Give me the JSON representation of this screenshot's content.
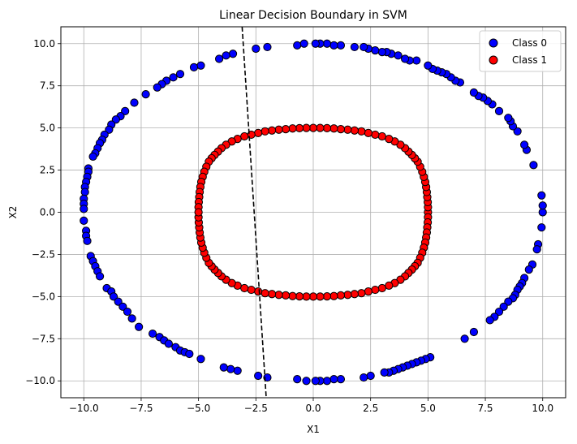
{
  "chart_data": {
    "type": "scatter",
    "title": "Linear Decision Boundary in SVM",
    "xlabel": "X1",
    "ylabel": "X2",
    "xlim": [
      -11.0,
      11.0
    ],
    "ylim": [
      -11.0,
      11.0
    ],
    "xticks": [
      -10.0,
      -7.5,
      -5.0,
      -2.5,
      0.0,
      2.5,
      5.0,
      7.5,
      10.0
    ],
    "yticks": [
      -10.0,
      -7.5,
      -5.0,
      -2.5,
      0.0,
      2.5,
      5.0,
      7.5,
      10.0
    ],
    "xtick_labels": [
      "−10.0",
      "−7.5",
      "−5.0",
      "−2.5",
      "0.0",
      "2.5",
      "5.0",
      "7.5",
      "10.0"
    ],
    "ytick_labels": [
      "−10.0",
      "−7.5",
      "−5.0",
      "−2.5",
      "0.0",
      "2.5",
      "5.0",
      "7.5",
      "10.0"
    ],
    "grid": true,
    "legend_position": "top-right",
    "series": [
      {
        "name": "Class 0",
        "color": "#0000ff",
        "points": [
          [
            10.0,
            0.0
          ],
          [
            10.0,
            0.4
          ],
          [
            9.95,
            1.0
          ],
          [
            9.95,
            -0.9
          ],
          [
            9.8,
            -1.9
          ],
          [
            9.75,
            -2.2
          ],
          [
            9.6,
            2.8
          ],
          [
            9.3,
            3.7
          ],
          [
            9.2,
            4.0
          ],
          [
            9.55,
            -3.1
          ],
          [
            9.4,
            -3.4
          ],
          [
            9.2,
            -3.9
          ],
          [
            8.9,
            4.8
          ],
          [
            8.7,
            5.1
          ],
          [
            8.6,
            5.4
          ],
          [
            8.5,
            5.6
          ],
          [
            9.1,
            -4.2
          ],
          [
            9.0,
            -4.4
          ],
          [
            8.9,
            -4.6
          ],
          [
            8.8,
            -4.9
          ],
          [
            8.7,
            -5.1
          ],
          [
            8.5,
            -5.3
          ],
          [
            8.3,
            -5.6
          ],
          [
            8.1,
            -5.9
          ],
          [
            7.9,
            -6.2
          ],
          [
            7.7,
            -6.4
          ],
          [
            8.1,
            6.0
          ],
          [
            7.8,
            6.4
          ],
          [
            7.6,
            6.6
          ],
          [
            7.4,
            6.8
          ],
          [
            7.2,
            6.9
          ],
          [
            7.0,
            7.1
          ],
          [
            7.0,
            -7.1
          ],
          [
            6.6,
            -7.5
          ],
          [
            6.4,
            7.7
          ],
          [
            6.2,
            7.8
          ],
          [
            6.0,
            8.0
          ],
          [
            5.8,
            8.2
          ],
          [
            5.6,
            8.3
          ],
          [
            5.4,
            8.4
          ],
          [
            5.2,
            8.5
          ],
          [
            5.0,
            8.7
          ],
          [
            5.1,
            -8.6
          ],
          [
            4.9,
            -8.7
          ],
          [
            4.7,
            -8.8
          ],
          [
            4.5,
            -8.9
          ],
          [
            4.3,
            -9.0
          ],
          [
            4.1,
            -9.1
          ],
          [
            3.9,
            -9.2
          ],
          [
            3.7,
            -9.3
          ],
          [
            3.5,
            -9.4
          ],
          [
            3.3,
            -9.5
          ],
          [
            3.1,
            -9.5
          ],
          [
            4.5,
            9.0
          ],
          [
            4.2,
            9.0
          ],
          [
            4.0,
            9.1
          ],
          [
            3.7,
            9.3
          ],
          [
            3.4,
            9.4
          ],
          [
            3.2,
            9.5
          ],
          [
            3.0,
            9.5
          ],
          [
            2.7,
            9.6
          ],
          [
            2.4,
            9.7
          ],
          [
            2.2,
            9.8
          ],
          [
            1.8,
            9.8
          ],
          [
            2.5,
            -9.7
          ],
          [
            2.2,
            -9.8
          ],
          [
            1.2,
            9.9
          ],
          [
            0.9,
            9.9
          ],
          [
            0.6,
            10.0
          ],
          [
            0.3,
            10.0
          ],
          [
            0.1,
            10.0
          ],
          [
            -0.4,
            10.0
          ],
          [
            -0.7,
            9.9
          ],
          [
            -2.0,
            9.8
          ],
          [
            -2.5,
            9.7
          ],
          [
            -3.5,
            9.4
          ],
          [
            -3.8,
            9.3
          ],
          [
            -4.1,
            9.1
          ],
          [
            1.2,
            -9.9
          ],
          [
            0.9,
            -9.9
          ],
          [
            0.6,
            -10.0
          ],
          [
            0.3,
            -10.0
          ],
          [
            0.1,
            -10.0
          ],
          [
            -0.3,
            -10.0
          ],
          [
            -0.7,
            -9.9
          ],
          [
            -2.0,
            -9.8
          ],
          [
            -2.4,
            -9.7
          ],
          [
            -3.3,
            -9.4
          ],
          [
            -3.6,
            -9.3
          ],
          [
            -3.9,
            -9.2
          ],
          [
            -4.9,
            8.7
          ],
          [
            -5.2,
            8.6
          ],
          [
            -5.8,
            8.2
          ],
          [
            -6.1,
            8.0
          ],
          [
            -6.4,
            7.8
          ],
          [
            -6.6,
            7.6
          ],
          [
            -6.8,
            7.4
          ],
          [
            -7.3,
            7.0
          ],
          [
            -7.8,
            6.5
          ],
          [
            -8.2,
            6.0
          ],
          [
            -8.4,
            5.7
          ],
          [
            -8.6,
            5.5
          ],
          [
            -8.8,
            5.2
          ],
          [
            -8.9,
            4.9
          ],
          [
            -9.1,
            4.6
          ],
          [
            -9.2,
            4.3
          ],
          [
            -9.3,
            4.1
          ],
          [
            -9.4,
            3.8
          ],
          [
            -9.5,
            3.5
          ],
          [
            -9.6,
            3.3
          ],
          [
            -9.8,
            2.6
          ],
          [
            -9.8,
            2.4
          ],
          [
            -9.85,
            2.1
          ],
          [
            -9.9,
            1.8
          ],
          [
            -9.95,
            1.5
          ],
          [
            -9.95,
            1.2
          ],
          [
            -10.0,
            0.8
          ],
          [
            -10.0,
            0.5
          ],
          [
            -10.0,
            0.2
          ],
          [
            -10.0,
            -0.5
          ],
          [
            -9.9,
            -1.1
          ],
          [
            -9.9,
            -1.4
          ],
          [
            -9.85,
            -1.7
          ],
          [
            -9.7,
            -2.6
          ],
          [
            -9.6,
            -2.9
          ],
          [
            -9.5,
            -3.2
          ],
          [
            -9.4,
            -3.5
          ],
          [
            -9.3,
            -3.8
          ],
          [
            -9.0,
            -4.5
          ],
          [
            -8.8,
            -4.7
          ],
          [
            -8.7,
            -5.0
          ],
          [
            -8.5,
            -5.3
          ],
          [
            -8.3,
            -5.6
          ],
          [
            -8.1,
            -5.9
          ],
          [
            -7.9,
            -6.3
          ],
          [
            -7.6,
            -6.8
          ],
          [
            -7.0,
            -7.2
          ],
          [
            -6.7,
            -7.4
          ],
          [
            -6.5,
            -7.6
          ],
          [
            -6.3,
            -7.8
          ],
          [
            -6.0,
            -8.0
          ],
          [
            -5.8,
            -8.2
          ],
          [
            -5.6,
            -8.3
          ],
          [
            -5.4,
            -8.4
          ],
          [
            -4.9,
            -8.7
          ]
        ]
      },
      {
        "name": "Class 1",
        "color": "#ff0000",
        "points": [
          [
            5.0,
            0.0
          ],
          [
            5.0,
            0.3
          ],
          [
            5.0,
            -0.3
          ],
          [
            4.99,
            0.6
          ],
          [
            4.99,
            -0.6
          ],
          [
            4.97,
            0.9
          ],
          [
            4.97,
            -0.9
          ],
          [
            4.95,
            1.2
          ],
          [
            4.95,
            -1.2
          ],
          [
            4.92,
            1.5
          ],
          [
            4.92,
            -1.5
          ],
          [
            4.88,
            1.8
          ],
          [
            4.88,
            -1.8
          ],
          [
            4.82,
            2.1
          ],
          [
            4.82,
            -2.1
          ],
          [
            4.75,
            2.4
          ],
          [
            4.75,
            -2.4
          ],
          [
            4.66,
            2.7
          ],
          [
            4.66,
            -2.7
          ],
          [
            4.55,
            3.0
          ],
          [
            4.55,
            -3.0
          ],
          [
            4.43,
            3.2
          ],
          [
            4.43,
            -3.2
          ],
          [
            4.3,
            3.4
          ],
          [
            4.3,
            -3.4
          ],
          [
            4.15,
            3.6
          ],
          [
            4.15,
            -3.6
          ],
          [
            4.0,
            3.8
          ],
          [
            4.0,
            -3.8
          ],
          [
            3.8,
            4.0
          ],
          [
            3.8,
            -4.0
          ],
          [
            3.55,
            4.2
          ],
          [
            3.55,
            -4.2
          ],
          [
            3.3,
            4.35
          ],
          [
            3.3,
            -4.35
          ],
          [
            3.0,
            4.5
          ],
          [
            3.0,
            -4.5
          ],
          [
            2.7,
            4.6
          ],
          [
            2.7,
            -4.6
          ],
          [
            2.4,
            4.7
          ],
          [
            2.4,
            -4.7
          ],
          [
            2.1,
            4.8
          ],
          [
            2.1,
            -4.8
          ],
          [
            1.8,
            4.85
          ],
          [
            1.8,
            -4.85
          ],
          [
            1.5,
            4.9
          ],
          [
            1.5,
            -4.9
          ],
          [
            1.2,
            4.93
          ],
          [
            1.2,
            -4.93
          ],
          [
            0.9,
            4.97
          ],
          [
            0.9,
            -4.97
          ],
          [
            0.6,
            4.99
          ],
          [
            0.6,
            -4.99
          ],
          [
            0.3,
            5.0
          ],
          [
            0.3,
            -5.0
          ],
          [
            0.0,
            5.0
          ],
          [
            0.0,
            -5.0
          ],
          [
            -0.3,
            5.0
          ],
          [
            -0.3,
            -5.0
          ],
          [
            -0.6,
            4.99
          ],
          [
            -0.6,
            -4.99
          ],
          [
            -0.9,
            4.97
          ],
          [
            -0.9,
            -4.97
          ],
          [
            -1.2,
            4.93
          ],
          [
            -1.2,
            -4.93
          ],
          [
            -1.5,
            4.9
          ],
          [
            -1.5,
            -4.9
          ],
          [
            -1.8,
            4.85
          ],
          [
            -1.8,
            -4.85
          ],
          [
            -2.1,
            4.8
          ],
          [
            -2.1,
            -4.8
          ],
          [
            -2.4,
            4.7
          ],
          [
            -2.4,
            -4.7
          ],
          [
            -2.7,
            4.6
          ],
          [
            -2.7,
            -4.6
          ],
          [
            -3.0,
            4.5
          ],
          [
            -3.0,
            -4.5
          ],
          [
            -3.3,
            4.35
          ],
          [
            -3.3,
            -4.35
          ],
          [
            -3.55,
            4.2
          ],
          [
            -3.55,
            -4.2
          ],
          [
            -3.8,
            4.0
          ],
          [
            -3.8,
            -4.0
          ],
          [
            -4.0,
            3.8
          ],
          [
            -4.0,
            -3.8
          ],
          [
            -4.15,
            3.6
          ],
          [
            -4.15,
            -3.6
          ],
          [
            -4.3,
            3.4
          ],
          [
            -4.3,
            -3.4
          ],
          [
            -4.43,
            3.2
          ],
          [
            -4.43,
            -3.2
          ],
          [
            -4.55,
            3.0
          ],
          [
            -4.55,
            -3.0
          ],
          [
            -4.66,
            2.7
          ],
          [
            -4.66,
            -2.7
          ],
          [
            -4.75,
            2.4
          ],
          [
            -4.75,
            -2.4
          ],
          [
            -4.82,
            2.1
          ],
          [
            -4.82,
            -2.1
          ],
          [
            -4.88,
            1.8
          ],
          [
            -4.88,
            -1.8
          ],
          [
            -4.92,
            1.5
          ],
          [
            -4.92,
            -1.5
          ],
          [
            -4.95,
            1.2
          ],
          [
            -4.95,
            -1.2
          ],
          [
            -4.97,
            0.9
          ],
          [
            -4.97,
            -0.9
          ],
          [
            -4.99,
            0.6
          ],
          [
            -4.99,
            -0.6
          ],
          [
            -5.0,
            0.3
          ],
          [
            -5.0,
            -0.3
          ],
          [
            -5.0,
            0.0
          ]
        ]
      }
    ],
    "decision_boundary": {
      "style": "dashed",
      "color": "#000000",
      "points": [
        [
          -3.1,
          11.0
        ],
        [
          -2.05,
          -11.0
        ]
      ]
    }
  }
}
